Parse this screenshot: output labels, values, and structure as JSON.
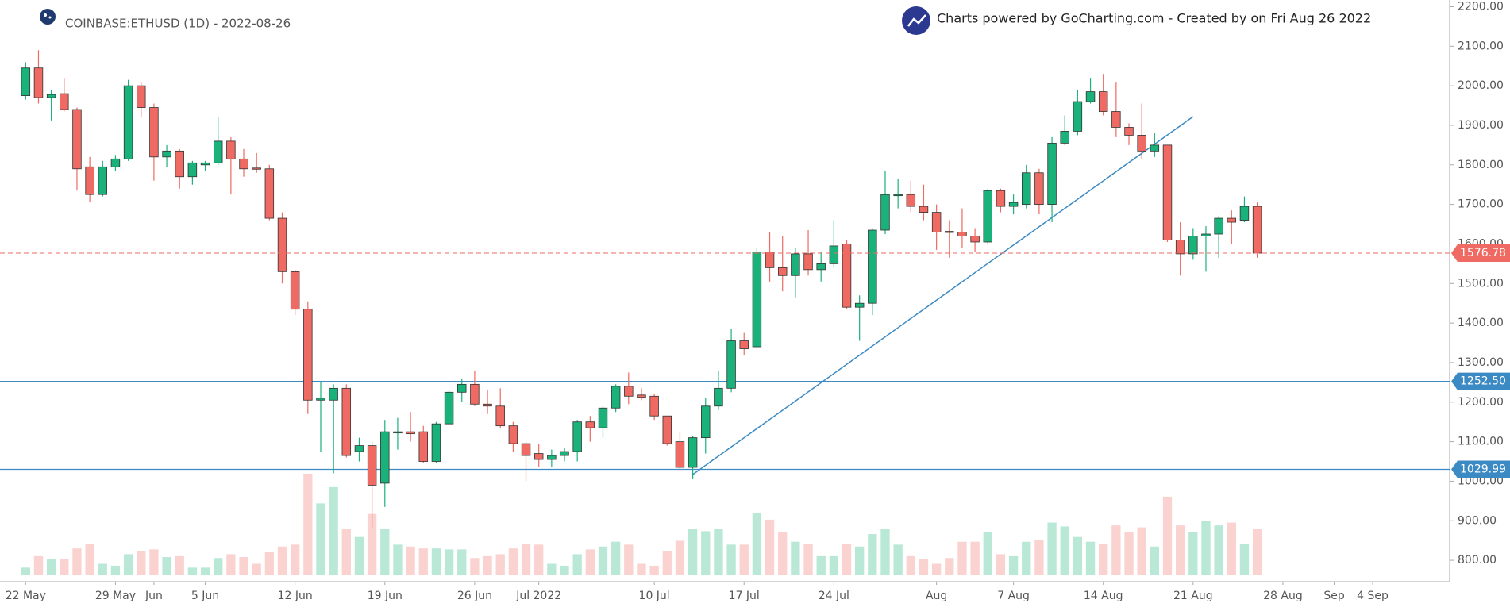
{
  "chart_data": {
    "type": "candlestick",
    "title": "COINBASE:ETHUSD (1D) - 2022-08-26",
    "credits": "Charts powered by GoCharting.com - Created by  on Fri Aug 26 2022",
    "x": [
      "2022-05-22",
      "2022-05-23",
      "2022-05-24",
      "2022-05-25",
      "2022-05-26",
      "2022-05-27",
      "2022-05-28",
      "2022-05-29",
      "2022-05-30",
      "2022-05-31",
      "2022-06-01",
      "2022-06-02",
      "2022-06-03",
      "2022-06-04",
      "2022-06-05",
      "2022-06-06",
      "2022-06-07",
      "2022-06-08",
      "2022-06-09",
      "2022-06-10",
      "2022-06-11",
      "2022-06-12",
      "2022-06-13",
      "2022-06-14",
      "2022-06-15",
      "2022-06-16",
      "2022-06-17",
      "2022-06-18",
      "2022-06-19",
      "2022-06-20",
      "2022-06-21",
      "2022-06-22",
      "2022-06-23",
      "2022-06-24",
      "2022-06-25",
      "2022-06-26",
      "2022-06-27",
      "2022-06-28",
      "2022-06-29",
      "2022-06-30",
      "2022-07-01",
      "2022-07-02",
      "2022-07-03",
      "2022-07-04",
      "2022-07-05",
      "2022-07-06",
      "2022-07-07",
      "2022-07-08",
      "2022-07-09",
      "2022-07-10",
      "2022-07-11",
      "2022-07-12",
      "2022-07-13",
      "2022-07-14",
      "2022-07-15",
      "2022-07-16",
      "2022-07-17",
      "2022-07-18",
      "2022-07-19",
      "2022-07-20",
      "2022-07-21",
      "2022-07-22",
      "2022-07-23",
      "2022-07-24",
      "2022-07-25",
      "2022-07-26",
      "2022-07-27",
      "2022-07-28",
      "2022-07-29",
      "2022-07-30",
      "2022-07-31",
      "2022-08-01",
      "2022-08-02",
      "2022-08-03",
      "2022-08-04",
      "2022-08-05",
      "2022-08-06",
      "2022-08-07",
      "2022-08-08",
      "2022-08-09",
      "2022-08-10",
      "2022-08-11",
      "2022-08-12",
      "2022-08-13",
      "2022-08-14",
      "2022-08-15",
      "2022-08-16",
      "2022-08-17",
      "2022-08-18",
      "2022-08-19",
      "2022-08-20",
      "2022-08-21",
      "2022-08-22",
      "2022-08-23",
      "2022-08-24",
      "2022-08-25",
      "2022-08-26"
    ],
    "open": [
      1975,
      2045,
      1970,
      1980,
      1940,
      1795,
      1725,
      1795,
      1815,
      2000,
      1945,
      1820,
      1835,
      1770,
      1800,
      1805,
      1860,
      1815,
      1792,
      1790,
      1665,
      1530,
      1435,
      1205,
      1205,
      1235,
      1075,
      1090,
      995,
      1125,
      1125,
      1125,
      1050,
      1145,
      1225,
      1245,
      1195,
      1190,
      1140,
      1095,
      1070,
      1055,
      1065,
      1075,
      1150,
      1135,
      1185,
      1240,
      1218,
      1215,
      1165,
      1100,
      1035,
      1110,
      1190,
      1235,
      1355,
      1340,
      1580,
      1540,
      1520,
      1575,
      1535,
      1550,
      1600,
      1440,
      1450,
      1635,
      1725,
      1725,
      1695,
      1680,
      1632,
      1630,
      1620,
      1605,
      1735,
      1695,
      1700,
      1780,
      1700,
      1855,
      1885,
      1960,
      1985,
      1935,
      1895,
      1875,
      1835,
      1850,
      1610,
      1575,
      1620,
      1625,
      1665,
      1660,
      1695
    ],
    "high": [
      2060,
      2090,
      1990,
      2020,
      1945,
      1820,
      1810,
      1825,
      2015,
      2010,
      1955,
      1850,
      1840,
      1810,
      1810,
      1920,
      1870,
      1840,
      1830,
      1800,
      1680,
      1535,
      1455,
      1250,
      1245,
      1245,
      1110,
      1100,
      1155,
      1160,
      1175,
      1140,
      1150,
      1230,
      1260,
      1280,
      1230,
      1235,
      1150,
      1100,
      1095,
      1080,
      1085,
      1155,
      1165,
      1190,
      1245,
      1275,
      1235,
      1220,
      1165,
      1125,
      1115,
      1210,
      1280,
      1385,
      1375,
      1590,
      1630,
      1620,
      1590,
      1635,
      1580,
      1660,
      1610,
      1470,
      1640,
      1785,
      1765,
      1760,
      1750,
      1700,
      1660,
      1690,
      1640,
      1740,
      1740,
      1725,
      1800,
      1790,
      1870,
      1925,
      1990,
      2020,
      2030,
      2010,
      1905,
      1955,
      1880,
      1850,
      1655,
      1640,
      1645,
      1670,
      1685,
      1720,
      1705
    ],
    "low": [
      1965,
      1955,
      1910,
      1935,
      1735,
      1705,
      1720,
      1785,
      1810,
      1920,
      1760,
      1795,
      1740,
      1750,
      1785,
      1800,
      1725,
      1770,
      1780,
      1660,
      1500,
      1420,
      1170,
      1075,
      1020,
      1060,
      1050,
      880,
      935,
      1080,
      1100,
      1045,
      1045,
      1145,
      1200,
      1190,
      1170,
      1135,
      1075,
      1000,
      1035,
      1035,
      1050,
      1050,
      1100,
      1110,
      1175,
      1195,
      1205,
      1155,
      1090,
      1030,
      1005,
      1070,
      1180,
      1225,
      1320,
      1335,
      1505,
      1480,
      1465,
      1520,
      1505,
      1540,
      1435,
      1355,
      1420,
      1625,
      1690,
      1680,
      1660,
      1585,
      1565,
      1590,
      1580,
      1600,
      1680,
      1675,
      1690,
      1675,
      1655,
      1850,
      1875,
      1955,
      1925,
      1870,
      1850,
      1815,
      1820,
      1605,
      1520,
      1560,
      1530,
      1565,
      1600,
      1655,
      1565
    ],
    "close": [
      2045,
      1970,
      1978,
      1940,
      1790,
      1725,
      1795,
      1815,
      2000,
      1945,
      1820,
      1835,
      1770,
      1805,
      1805,
      1860,
      1815,
      1790,
      1790,
      1665,
      1530,
      1435,
      1205,
      1210,
      1235,
      1065,
      1090,
      990,
      1125,
      1125,
      1120,
      1050,
      1145,
      1225,
      1245,
      1195,
      1190,
      1140,
      1095,
      1065,
      1055,
      1065,
      1075,
      1150,
      1135,
      1185,
      1240,
      1215,
      1212,
      1165,
      1095,
      1035,
      1110,
      1190,
      1235,
      1355,
      1335,
      1580,
      1540,
      1520,
      1575,
      1535,
      1550,
      1595,
      1440,
      1450,
      1635,
      1725,
      1725,
      1695,
      1680,
      1630,
      1630,
      1620,
      1605,
      1735,
      1695,
      1705,
      1780,
      1700,
      1855,
      1885,
      1960,
      1985,
      1935,
      1895,
      1875,
      1835,
      1850,
      1610,
      1575,
      1620,
      1625,
      1665,
      1655,
      1695,
      1576.78
    ],
    "volume": [
      8,
      20,
      17,
      17,
      28,
      33,
      12,
      10,
      22,
      25,
      27,
      19,
      20,
      8,
      8,
      18,
      22,
      19,
      12,
      24,
      30,
      32,
      106,
      75,
      92,
      48,
      40,
      64,
      48,
      32,
      30,
      28,
      28,
      27,
      27,
      18,
      20,
      22,
      28,
      33,
      32,
      12,
      10,
      22,
      27,
      30,
      35,
      32,
      12,
      10,
      25,
      36,
      48,
      46,
      48,
      32,
      32,
      65,
      58,
      45,
      35,
      33,
      20,
      20,
      33,
      30,
      43,
      48,
      32,
      20,
      17,
      12,
      18,
      35,
      35,
      45,
      22,
      20,
      35,
      37,
      55,
      51,
      40,
      35,
      33,
      52,
      45,
      50,
      30,
      82,
      52,
      45,
      57,
      52,
      55,
      33,
      48
    ],
    "vlim": [
      0,
      600
    ],
    "up_color": "#18b27a",
    "down_color": "#ef6a62",
    "xlim": [
      "2022-05-20",
      "2022-09-10"
    ],
    "xticks": [
      {
        "value": "2022-05-22",
        "label": "22 May"
      },
      {
        "value": "2022-05-29",
        "label": "29 May"
      },
      {
        "value": "2022-06-01",
        "label": "Jun"
      },
      {
        "value": "2022-06-05",
        "label": "5 Jun"
      },
      {
        "value": "2022-06-12",
        "label": "12 Jun"
      },
      {
        "value": "2022-06-19",
        "label": "19 Jun"
      },
      {
        "value": "2022-06-26",
        "label": "26 Jun"
      },
      {
        "value": "2022-07-01",
        "label": "Jul 2022"
      },
      {
        "value": "2022-07-10",
        "label": "10 Jul"
      },
      {
        "value": "2022-07-17",
        "label": "17 Jul"
      },
      {
        "value": "2022-07-24",
        "label": "24 Jul"
      },
      {
        "value": "2022-08-01",
        "label": "Aug"
      },
      {
        "value": "2022-08-07",
        "label": "7 Aug"
      },
      {
        "value": "2022-08-14",
        "label": "14 Aug"
      },
      {
        "value": "2022-08-21",
        "label": "21 Aug"
      },
      {
        "value": "2022-08-28",
        "label": "28 Aug"
      },
      {
        "value": "2022-09-01",
        "label": "Sep"
      },
      {
        "value": "2022-09-04",
        "label": "4 Sep"
      }
    ],
    "ylim": [
      746,
      2217
    ],
    "yticks": [
      {
        "value": 800,
        "label": "800.00"
      },
      {
        "value": 900,
        "label": "900.00"
      },
      {
        "value": 1000,
        "label": "1000.00"
      },
      {
        "value": 1100,
        "label": "1100.00"
      },
      {
        "value": 1200,
        "label": "1200.00"
      },
      {
        "value": 1300,
        "label": "1300.00"
      },
      {
        "value": 1400,
        "label": "1400.00"
      },
      {
        "value": 1500,
        "label": "1500.00"
      },
      {
        "value": 1600,
        "label": "1600.00"
      },
      {
        "value": 1700,
        "label": "1700.00"
      },
      {
        "value": 1800,
        "label": "1800.00"
      },
      {
        "value": 1900,
        "label": "1900.00"
      },
      {
        "value": 2000,
        "label": "2000.00"
      },
      {
        "value": 2100,
        "label": "2100.00"
      },
      {
        "value": 2200,
        "label": "2200.00"
      }
    ],
    "hlines": [
      {
        "value": 1252.5,
        "label": "1252.50"
      },
      {
        "value": 1029.99,
        "label": "1029.99"
      }
    ],
    "hline_color": "#3b8ac4",
    "trendline": {
      "x": [
        "2022-07-13",
        "2022-08-21"
      ],
      "y": [
        1017,
        1922
      ]
    }
  }
}
